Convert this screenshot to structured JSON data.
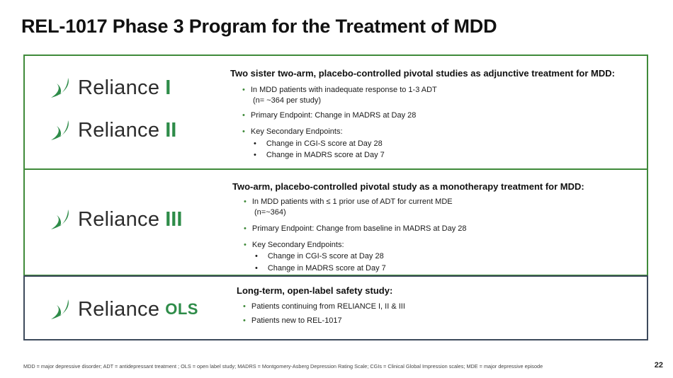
{
  "title": "REL-1017 Phase 3 Program for the Treatment of MDD",
  "colors": {
    "green_border": "#3f8a3a",
    "navy_border": "#3d4a5c",
    "logo_accent": "#2e8c49"
  },
  "logos": {
    "r1": {
      "word": "Reliance",
      "suffix": "I",
      "icon": "swoosh-icon"
    },
    "r2": {
      "word": "Reliance",
      "suffix": "II",
      "icon": "swoosh-icon"
    },
    "r3": {
      "word": "Reliance",
      "suffix": "III",
      "icon": "swoosh-icon"
    },
    "ols": {
      "word": "Reliance",
      "suffix": "OLS",
      "icon": "swoosh-icon"
    }
  },
  "panel1": {
    "heading": "Two sister two-arm, placebo-controlled pivotal studies as adjunctive treatment for MDD:",
    "bullets": [
      "In MDD patients with inadequate response to 1-3 ADT",
      "(n= ~364 per study)",
      "Primary Endpoint: Change in MADRS at Day 28",
      "Key Secondary Endpoints:"
    ],
    "sub": [
      "Change in CGI-S score at Day 28",
      "Change in MADRS score at Day 7"
    ]
  },
  "panel2": {
    "heading": "Two-arm, placebo-controlled pivotal study as a monotherapy treatment for MDD:",
    "bullets": [
      "In MDD patients with ≤ 1 prior use of ADT for current MDE",
      "(n=~364)",
      "Primary Endpoint: Change from baseline in MADRS at Day 28",
      "Key Secondary Endpoints:"
    ],
    "sub": [
      "Change in CGI-S score at Day 28",
      "Change in MADRS score at Day 7"
    ]
  },
  "panel3": {
    "heading": "Long-term, open-label safety study:",
    "bullets": [
      "Patients continuing from RELIANCE I, II & III",
      "Patients new to REL-1017"
    ]
  },
  "bullet_glyph": "•",
  "footnote": "MDD = major depressive disorder; ADT = antidepressant treatment ; OLS = open label study; MADRS = Montgomery-Asberg Depression Rating Scale; CGIs = Clinical Global Impression scales; MDE = major depressive episode",
  "page_number": "22"
}
